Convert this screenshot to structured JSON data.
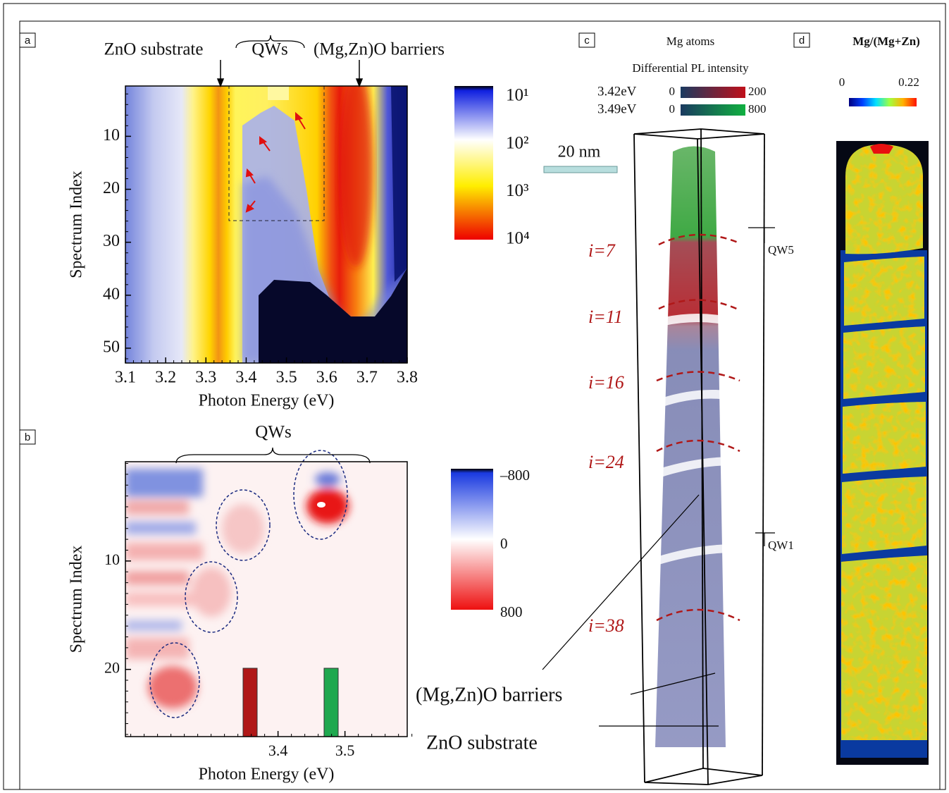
{
  "panel_labels": [
    "a",
    "b",
    "c",
    "d"
  ],
  "panel_a": {
    "top_labels": [
      "ZnO substrate",
      "QWs",
      "(Mg,Zn)O barriers"
    ],
    "xlabel": "Photon Energy (eV)",
    "ylabel": "Spectrum Index",
    "xlim": [
      3.1,
      3.8
    ],
    "xticks": [
      3.1,
      3.2,
      3.3,
      3.4,
      3.5,
      3.6,
      3.7,
      3.8
    ],
    "ylim": [
      0.5,
      52.8
    ],
    "yticks": [
      10,
      20,
      30,
      40,
      50
    ],
    "colorbar_labels": [
      "10¹",
      "10²",
      "10³",
      "10⁴"
    ]
  },
  "panel_b": {
    "top_label": "QWs",
    "xlabel": "Photon Energy (eV)",
    "ylabel": "Spectrum Index",
    "xlim": [
      3.172,
      3.593
    ],
    "xticks": [
      3.4,
      3.5
    ],
    "ylim": [
      0.84,
      26.2
    ],
    "yticks": [
      10,
      20
    ],
    "colorbar_labels": [
      "–800",
      "0",
      "800"
    ]
  },
  "panel_c": {
    "title": "Mg atoms",
    "subtitle": "Differential PL intensity",
    "legend": [
      {
        "energy": "3.42eV",
        "min": "0",
        "max": "200"
      },
      {
        "energy": "3.49eV",
        "min": "0",
        "max": "800"
      }
    ],
    "scale_bar": "20 nm",
    "indices": [
      "i=7",
      "i=11",
      "i=16",
      "i=24",
      "i=38"
    ],
    "qw_labels": [
      "QW5",
      "QW1"
    ],
    "annotations": [
      "(Mg,Zn)O barriers",
      "ZnO substrate"
    ]
  },
  "panel_d": {
    "title": "Mg/(Mg+Zn)",
    "colorbar_labels": [
      "0",
      "0.22"
    ]
  }
}
